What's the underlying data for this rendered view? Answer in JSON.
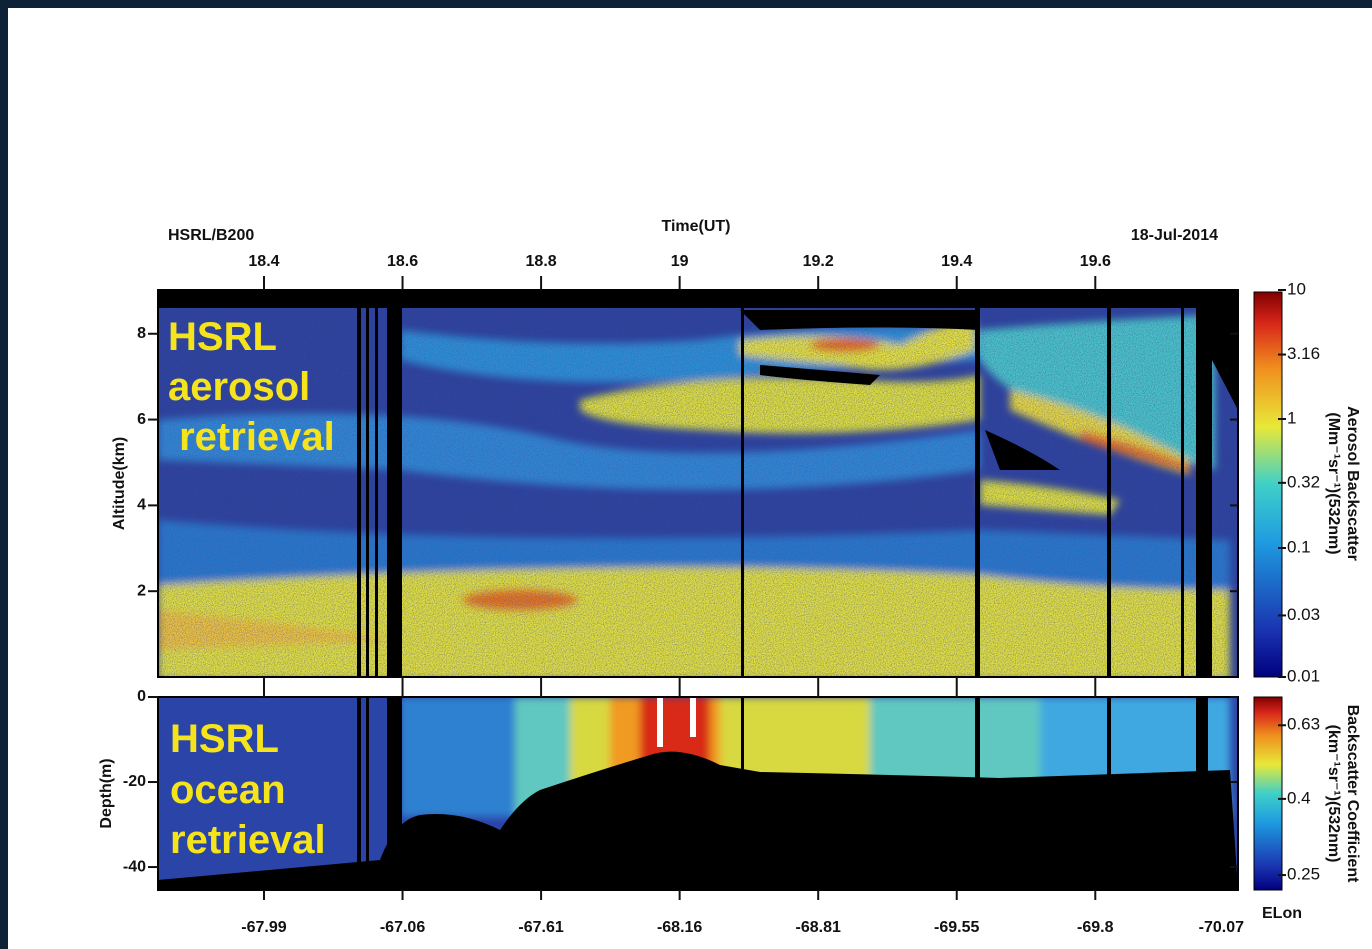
{
  "chart_data": {
    "type": "heatmap",
    "platform": "HSRL/B200",
    "title": "Time(UT)",
    "date": "18-Jul-2014",
    "xlim": [
      18.247,
      19.806
    ],
    "xticks": [
      18.4,
      18.6,
      18.8,
      19,
      19.2,
      19.4,
      19.6
    ],
    "lon_label": "ELon",
    "lon_ticks": [
      -67.99,
      -67.06,
      -67.61,
      -68.16,
      -68.81,
      -69.55,
      -69.8,
      -70.07
    ],
    "panels": [
      {
        "ylabel": "Altitude(km)",
        "ylim": [
          0,
          9.02
        ],
        "yticks": [
          2,
          4,
          6,
          8
        ],
        "annotation": [
          "HSRL",
          "aerosol",
          " retrieval"
        ],
        "colorbar": {
          "label": [
            "Aerosol Backscatter",
            "(Mm⁻¹sr⁻¹)(532nm)"
          ],
          "lim": [
            0.01,
            10
          ],
          "log": true,
          "ticks": [
            10,
            3.16,
            1,
            0.32,
            0.1,
            0.03,
            0.01
          ]
        }
      },
      {
        "ylabel": "Depth(m)",
        "ylim": [
          -45.4,
          0
        ],
        "yticks": [
          0,
          -20,
          -40
        ],
        "annotation": [
          "HSRL",
          "ocean",
          "retrieval"
        ],
        "colorbar": {
          "label": [
            "Backscatter Coefficient",
            "(km⁻¹sr⁻¹)(532nm)"
          ],
          "lim": [
            0.228,
            0.75
          ],
          "log": true,
          "ticks": [
            0.63,
            0.4,
            0.25
          ]
        }
      }
    ]
  }
}
